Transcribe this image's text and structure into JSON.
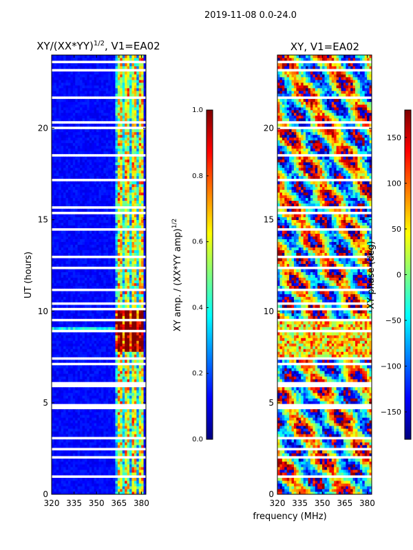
{
  "suptitle": "2019-11-08 0.0-24.0",
  "xlabel": "frequency (MHz)",
  "ylabel": "UT (hours)",
  "chart_data": [
    {
      "type": "heatmap",
      "title_main": "XY/(XX*YY)",
      "title_sup": "1/2",
      "title_rest": ", V1=EA02",
      "x_ticks": [
        320,
        335,
        350,
        365,
        380
      ],
      "xlim": [
        320,
        383
      ],
      "y_ticks": [
        0,
        5,
        10,
        15,
        20
      ],
      "ylim": [
        0,
        24
      ],
      "colorbar": {
        "label_main": "XY amp. / (XX*YY amp)",
        "label_sup": "1/2",
        "ticks": [
          "0.0",
          "0.2",
          "0.4",
          "0.6",
          "0.8",
          "1.0"
        ],
        "range": [
          0,
          1
        ],
        "colormap": "jet"
      },
      "features": {
        "bright_channels_mhz": [
          365,
          370,
          375,
          380
        ],
        "band_mhz": [
          362,
          381
        ],
        "bright_hours": [
          7.8,
          10.0
        ],
        "line_hours": [
          8.8,
          9.2
        ]
      }
    },
    {
      "type": "heatmap",
      "title": "XY, V1=EA02",
      "x_ticks": [
        320,
        335,
        350,
        365,
        380
      ],
      "xlim": [
        320,
        383
      ],
      "y_ticks": [
        0,
        5,
        10,
        15,
        20
      ],
      "ylim": [
        0,
        24
      ],
      "colorbar": {
        "label": "XY phase (deg)",
        "ticks": [
          "150",
          "100",
          "50",
          "0",
          "−50",
          "−100",
          "−150"
        ],
        "tick_values": [
          150,
          100,
          50,
          0,
          -50,
          -100,
          -150
        ],
        "range": [
          -180,
          180
        ],
        "colormap": "jet"
      }
    }
  ],
  "colors": {
    "background": "#ffffff",
    "axis": "#000000",
    "gap": "#ffffff"
  }
}
